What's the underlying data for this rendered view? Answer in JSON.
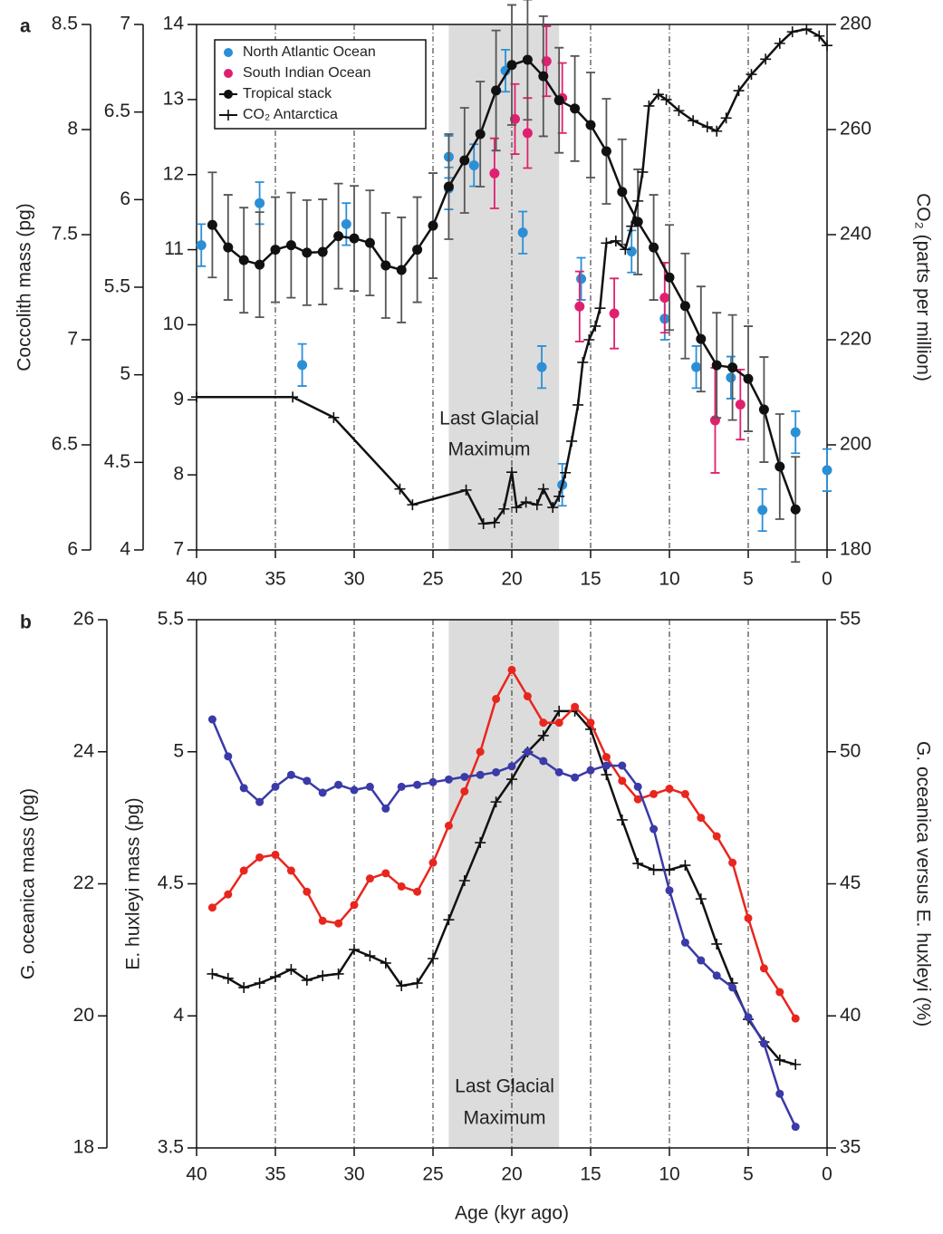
{
  "chart_data": [
    {
      "type": "line",
      "panel_label": "a",
      "xlim": [
        40,
        0
      ],
      "xticks": [
        40,
        35,
        30,
        25,
        20,
        15,
        10,
        5,
        0
      ],
      "grid": true,
      "ylim": [
        7,
        14
      ],
      "yticks": [
        7,
        8,
        9,
        10,
        11,
        12,
        13,
        14
      ],
      "ycolor": "#111",
      "ylabel": "Coccolith mass (pg)",
      "y2lim": [
        180,
        280
      ],
      "y2ticks": [
        180,
        200,
        220,
        240,
        260,
        280
      ],
      "y2label": "CO₂ (parts per million)",
      "y3lim": [
        6,
        8.5
      ],
      "y3ticks": [
        6,
        6.5,
        7,
        7.5,
        8,
        8.5
      ],
      "y3color": "#2b8fd6",
      "y4lim": [
        4,
        7
      ],
      "y4ticks": [
        4,
        4.5,
        5,
        5.5,
        6,
        6.5,
        7
      ],
      "y4color": "#e0206e",
      "shade_x": [
        24,
        17
      ],
      "annotation": [
        "Last Glacial",
        "Maximum"
      ],
      "legend": "upper left",
      "series": [
        {
          "name": "North Atlantic Ocean",
          "color": "#2b8fd6",
          "axis": "y3",
          "marker": "dot",
          "line": false,
          "x": [
            39.7,
            36,
            33.3,
            30.5,
            24,
            24,
            22.4,
            20.4,
            19.3,
            18.1,
            16.8,
            15.6,
            12.4,
            10.3,
            8.3,
            6.1,
            4.1,
            2,
            0
          ],
          "values": [
            7.45,
            7.65,
            6.88,
            7.55,
            7.72,
            7.87,
            7.83,
            8.28,
            7.51,
            6.87,
            6.31,
            7.29,
            7.42,
            7.1,
            6.87,
            6.82,
            6.19,
            6.56,
            6.38
          ],
          "errors": [
            0.1,
            0.1,
            0.1,
            0.1,
            0.1,
            0.1,
            0.1,
            0.1,
            0.1,
            0.1,
            0.1,
            0.1,
            0.1,
            0.1,
            0.1,
            0.1,
            0.1,
            0.1,
            0.1
          ]
        },
        {
          "name": "South Indian Ocean",
          "color": "#e0206e",
          "axis": "y4",
          "marker": "dot",
          "line": false,
          "x": [
            21.1,
            19.8,
            19,
            17.8,
            16.8,
            15.7,
            13.5,
            10.3,
            7.1,
            5.5
          ],
          "values": [
            6.15,
            6.46,
            6.38,
            6.79,
            6.58,
            5.39,
            5.35,
            5.44,
            4.74,
            4.83
          ],
          "errors": [
            0.2,
            0.2,
            0.2,
            0.2,
            0.2,
            0.2,
            0.2,
            0.2,
            0.3,
            0.2
          ]
        },
        {
          "name": "Tropical stack",
          "color": "#111111",
          "axis": "y",
          "marker": "dot",
          "line": true,
          "x": [
            39,
            38,
            37,
            36,
            35,
            34,
            33,
            32,
            31,
            30,
            29,
            28,
            27,
            26,
            25,
            24,
            23,
            22,
            21,
            20,
            19,
            18,
            17,
            16,
            15,
            14,
            13,
            12,
            11,
            10,
            9,
            8,
            7,
            6,
            5,
            4,
            3,
            2
          ],
          "values": [
            11.33,
            11.03,
            10.86,
            10.8,
            11.0,
            11.06,
            10.96,
            10.97,
            11.18,
            11.15,
            11.09,
            10.79,
            10.73,
            11.0,
            11.32,
            11.84,
            12.19,
            12.54,
            13.12,
            13.46,
            13.53,
            13.31,
            12.99,
            12.88,
            12.66,
            12.31,
            11.77,
            11.37,
            11.03,
            10.63,
            10.25,
            9.81,
            9.46,
            9.43,
            9.28,
            8.87,
            8.11,
            7.54
          ],
          "errors": [
            0.7,
            0.7,
            0.7,
            0.7,
            0.7,
            0.7,
            0.7,
            0.7,
            0.7,
            0.7,
            0.7,
            0.7,
            0.7,
            0.7,
            0.7,
            0.7,
            0.7,
            0.7,
            0.8,
            0.8,
            0.8,
            0.8,
            0.7,
            0.7,
            0.7,
            0.7,
            0.7,
            0.7,
            0.7,
            0.7,
            0.7,
            0.7,
            0.7,
            0.7,
            0.7,
            0.7,
            0.7,
            0.7
          ]
        },
        {
          "name": "CO₂ Antarctica",
          "color": "#111111",
          "axis": "y2",
          "marker": "plus",
          "line": true,
          "x": [
            40,
            33.9,
            31.3,
            27.1,
            26.3,
            22.9,
            21.8,
            21.1,
            20.5,
            20.0,
            19.7,
            19.1,
            18.4,
            18.0,
            17.4,
            17.0,
            16.6,
            16.2,
            15.8,
            15.5,
            15.1,
            14.7,
            14.4,
            14.0,
            13.4,
            12.8,
            12.4,
            12.0,
            11.7,
            11.3,
            10.7,
            10.2,
            9.4,
            8.5,
            7.6,
            7.0,
            6.4,
            5.6,
            4.8,
            3.9,
            3.0,
            2.2,
            1.3,
            0.5,
            0
          ],
          "values": [
            209.1,
            209.1,
            205.2,
            191.6,
            188.6,
            191.4,
            185.0,
            185.2,
            187.8,
            194.8,
            188.1,
            189.1,
            188.6,
            191.6,
            188.1,
            190.2,
            194.7,
            200.7,
            207.6,
            215.7,
            220.0,
            222.6,
            226.0,
            238.4,
            238.8,
            237.2,
            241.6,
            246.4,
            251.9,
            264.5,
            266.7,
            265.7,
            263.6,
            261.7,
            260.5,
            259.7,
            262.2,
            267.4,
            270.5,
            273.4,
            276.4,
            278.6,
            279.1,
            277.8,
            276.0
          ]
        }
      ]
    },
    {
      "type": "line",
      "panel_label": "b",
      "xlim": [
        40,
        0
      ],
      "xticks": [
        40,
        35,
        30,
        25,
        20,
        15,
        10,
        5,
        0
      ],
      "grid": true,
      "xlabel": "Age (kyr ago)",
      "ylim": [
        3.5,
        5.5
      ],
      "yticks": [
        3.5,
        4,
        4.5,
        5,
        5.5
      ],
      "ycolor": "#e8261e",
      "ylabel": "E. huxleyi mass (pg)",
      "y2lim": [
        35,
        55
      ],
      "y2ticks": [
        35,
        40,
        45,
        50,
        55
      ],
      "y2label": "G. oceanica versus E. huxleyi (%)",
      "y3lim": [
        18,
        26
      ],
      "y3ticks": [
        18,
        20,
        22,
        24,
        26
      ],
      "y3color": "#3a3aa8",
      "y3label": "G. oceanica  mass (pg)",
      "shade_x": [
        24,
        17
      ],
      "annotation": [
        "Last Glacial",
        "Maximum"
      ],
      "series": [
        {
          "color": "#111111",
          "axis": "y2",
          "marker": "plus",
          "line": true,
          "x": [
            39,
            38,
            37,
            36,
            35,
            34,
            33,
            32,
            31,
            30,
            29,
            28,
            27,
            26,
            25,
            24,
            23,
            22,
            21,
            20,
            19,
            18,
            17,
            16,
            15,
            14,
            13,
            12,
            11,
            10,
            9,
            8,
            7,
            6,
            5,
            4,
            3,
            2
          ],
          "values": [
            41.59,
            41.42,
            41.07,
            41.24,
            41.48,
            41.76,
            41.35,
            41.52,
            41.59,
            42.51,
            42.27,
            42.0,
            41.14,
            41.24,
            42.17,
            43.64,
            45.12,
            46.56,
            48.1,
            48.96,
            49.99,
            50.61,
            51.54,
            51.54,
            50.85,
            49.13,
            47.42,
            45.77,
            45.53,
            45.53,
            45.7,
            44.43,
            42.72,
            41.24,
            39.87,
            39.01,
            38.33,
            38.16
          ]
        },
        {
          "color": "#e8261e",
          "axis": "y",
          "marker": "dot",
          "line": true,
          "x": [
            39,
            38,
            37,
            36,
            35,
            34,
            33,
            32,
            31,
            30,
            29,
            28,
            27,
            26,
            25,
            24,
            23,
            22,
            21,
            20,
            19,
            18,
            17,
            16,
            15,
            14,
            13,
            12,
            11,
            10,
            9,
            8,
            7,
            6,
            5,
            4,
            3,
            2
          ],
          "values": [
            4.41,
            4.46,
            4.55,
            4.6,
            4.61,
            4.55,
            4.47,
            4.36,
            4.35,
            4.42,
            4.52,
            4.54,
            4.49,
            4.47,
            4.58,
            4.72,
            4.85,
            5.0,
            5.2,
            5.31,
            5.21,
            5.11,
            5.11,
            5.17,
            5.11,
            4.98,
            4.89,
            4.82,
            4.84,
            4.86,
            4.84,
            4.75,
            4.68,
            4.58,
            4.37,
            4.18,
            4.09,
            3.99
          ]
        },
        {
          "color": "#3a3aa8",
          "axis": "y3",
          "marker": "dot",
          "line": true,
          "x": [
            39,
            38,
            37,
            36,
            35,
            34,
            33,
            32,
            31,
            30,
            29,
            28,
            27,
            26,
            25,
            24,
            23,
            22,
            21,
            20,
            19,
            18,
            17,
            16,
            15,
            14,
            13,
            12,
            11,
            10,
            9,
            8,
            7,
            6,
            5,
            4,
            3,
            2
          ],
          "values": [
            24.49,
            23.93,
            23.45,
            23.24,
            23.47,
            23.65,
            23.56,
            23.38,
            23.5,
            23.42,
            23.47,
            23.14,
            23.47,
            23.5,
            23.54,
            23.58,
            23.62,
            23.65,
            23.69,
            23.78,
            24.0,
            23.86,
            23.69,
            23.61,
            23.72,
            23.79,
            23.79,
            23.47,
            22.83,
            21.9,
            21.11,
            20.84,
            20.61,
            20.43,
            19.98,
            19.58,
            18.82,
            18.32
          ]
        }
      ]
    }
  ]
}
